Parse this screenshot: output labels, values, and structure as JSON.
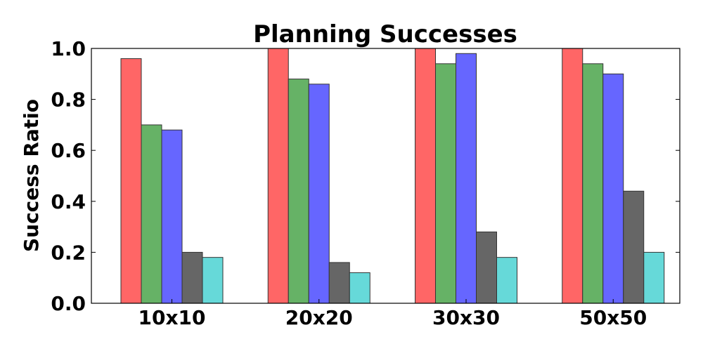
{
  "chart_data": {
    "type": "bar",
    "title": "Planning Successes",
    "xlabel": "",
    "ylabel": "Success Ratio",
    "categories": [
      "10x10",
      "20x20",
      "30x30",
      "50x50"
    ],
    "ylim": [
      0,
      1.0
    ],
    "yticks": [
      "0.0",
      "0.2",
      "0.4",
      "0.6",
      "0.8",
      "1.0"
    ],
    "grid": false,
    "series": [
      {
        "color": "#ff6666",
        "values": [
          0.96,
          1.0,
          1.0,
          1.0
        ]
      },
      {
        "color": "#66b266",
        "values": [
          0.7,
          0.88,
          0.94,
          0.94
        ]
      },
      {
        "color": "#6666ff",
        "values": [
          0.68,
          0.86,
          0.98,
          0.9
        ]
      },
      {
        "color": "#666666",
        "values": [
          0.2,
          0.16,
          0.28,
          0.44
        ]
      },
      {
        "color": "#66d9d9",
        "values": [
          0.18,
          0.12,
          0.18,
          0.2
        ]
      }
    ]
  }
}
